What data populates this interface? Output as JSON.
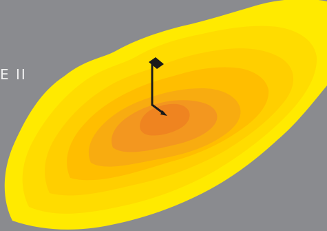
{
  "caption": {
    "text": "E II"
  },
  "colors": {
    "background": "#8a8b8f",
    "caption_text": "#f2f2f2",
    "contour_1": "#ffea00",
    "contour_2": "#ffdc00",
    "contour_3": "#ffcf00",
    "contour_4": "#ffbe00",
    "contour_5": "#f8ac10",
    "contour_6": "#f3971f",
    "contour_7": "#ef8420",
    "marker": "#1a1a1a"
  },
  "icons": {
    "marker": "dark-diamond-pin-icon",
    "direction": "arrow-right-down-icon"
  }
}
